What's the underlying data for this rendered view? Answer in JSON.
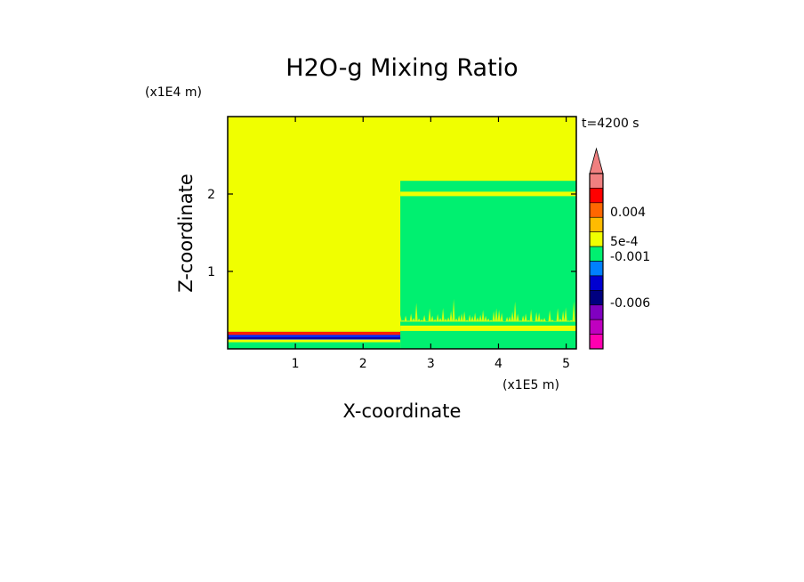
{
  "chart_data": {
    "type": "heatmap",
    "title": "H2O-g Mixing Ratio",
    "xlabel": "X-coordinate",
    "ylabel": "Z-coordinate",
    "x_unit": "(x1E5 m)",
    "y_unit": "(x1E4 m)",
    "time_label": "t=4200 s",
    "xlim": [
      0,
      5.15
    ],
    "ylim": [
      0,
      3.0
    ],
    "x_ticks": [
      "1",
      "2",
      "3",
      "4",
      "5"
    ],
    "y_ticks": [
      "1",
      "2"
    ],
    "colors": {
      "background_value": "#f0ff00",
      "near_zero": "#00f070",
      "neg_small": "#0030ff",
      "neg_medium": "#1000a0",
      "pos_medium": "#ff2000"
    },
    "colorbar": {
      "labels": [
        "0.004",
        "5e-4",
        "-0.001",
        "-0.006"
      ],
      "colors": [
        "#f08080",
        "#ff0000",
        "#ff6600",
        "#ffbb00",
        "#f0ff00",
        "#00f070",
        "#0080ff",
        "#0000d0",
        "#000080",
        "#8000c0",
        "#c000c0",
        "#ff00b0"
      ],
      "extend": "max"
    }
  }
}
